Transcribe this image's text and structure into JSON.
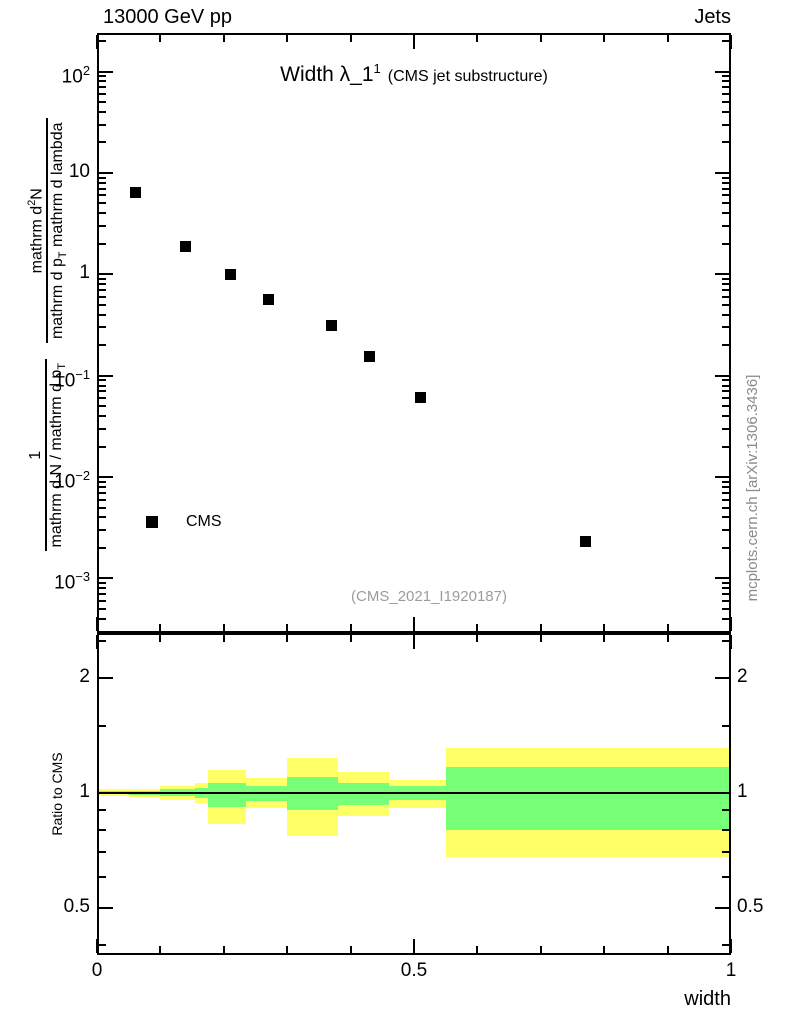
{
  "header": {
    "left": "13000 GeV pp",
    "right": "Jets"
  },
  "plot_title": {
    "main": "Width λ_1",
    "sup": "1",
    "paren": "(CMS jet substructure)"
  },
  "legend": {
    "label": "CMS"
  },
  "watermark": "(CMS_2021_I1920187)",
  "side_note": "mcplots.cern.ch [arXiv:1306.3436]",
  "ylabel": {
    "num1": "1",
    "den1_main": "mathrm d N / mathrm d p",
    "den1_sub": "T",
    "num2_main": "mathrm d",
    "num2_sup": "2",
    "num2_tail": "N",
    "den2_main": "mathrm d p",
    "den2_sub": "T",
    "den2_tail": " mathrm d lambda"
  },
  "ratio_ylabel": "Ratio to CMS",
  "xlabel": "width",
  "chart_data": {
    "type": "scatter",
    "title": "Width λ_1¹ (CMS jet substructure)",
    "xlabel": "width",
    "ylabel": "1/(mathrm d N/mathrm d p_T) mathrm d²N/(mathrm d p_T mathrm d lambda)",
    "xscale": "linear",
    "yscale": "log",
    "xlim": [
      0,
      1
    ],
    "ylim": [
      0.00029,
      240
    ],
    "legend_position": "inside-left-bottom",
    "series": [
      {
        "name": "CMS",
        "marker": "filled-square",
        "color": "#000000",
        "x": [
          0.06,
          0.14,
          0.21,
          0.27,
          0.37,
          0.43,
          0.51,
          0.77
        ],
        "y": [
          6.4,
          1.9,
          1.0,
          0.57,
          0.31,
          0.155,
          0.061,
          0.0023
        ]
      }
    ],
    "axes": {
      "x": {
        "majors": [
          0,
          0.5,
          1
        ],
        "minors": [
          0.1,
          0.2,
          0.3,
          0.4,
          0.6,
          0.7,
          0.8,
          0.9
        ],
        "labels": [
          {
            "v": 0,
            "label": "0"
          },
          {
            "v": 0.5,
            "label": "0.5"
          },
          {
            "v": 1,
            "label": "1"
          }
        ]
      },
      "y_main": {
        "ticks": [
          {
            "v": 100,
            "base": "10",
            "exp": "2"
          },
          {
            "v": 10,
            "base": "10",
            "exp": ""
          },
          {
            "v": 1,
            "base": "1",
            "exp": ""
          },
          {
            "v": 0.1,
            "base": "10",
            "exp": "−1"
          },
          {
            "v": 0.01,
            "base": "10",
            "exp": "−2"
          },
          {
            "v": 0.001,
            "base": "10",
            "exp": "−3"
          }
        ]
      },
      "y_ratio": {
        "ticks": [
          {
            "v": 2,
            "label": "2"
          },
          {
            "v": 1,
            "label": "1"
          },
          {
            "v": 0.5,
            "label": "0.5"
          }
        ],
        "minors": [
          0.4,
          0.6,
          0.7,
          0.8,
          0.9,
          1.5,
          2.5
        ]
      }
    },
    "ratio_panel": {
      "ylabel": "Ratio to CMS",
      "yscale": "log",
      "ylim": [
        0.376,
        2.62
      ],
      "baseline": 1,
      "outer_band_color": "#ffff66",
      "inner_band_color": "#77ff77",
      "bands": [
        {
          "x0": 0.0,
          "x1": 0.05,
          "outer_lo": 0.98,
          "outer_hi": 1.02,
          "inner_lo": 0.99,
          "inner_hi": 1.01
        },
        {
          "x0": 0.05,
          "x1": 0.1,
          "outer_lo": 0.975,
          "outer_hi": 1.025,
          "inner_lo": 0.988,
          "inner_hi": 1.012
        },
        {
          "x0": 0.1,
          "x1": 0.155,
          "outer_lo": 0.96,
          "outer_hi": 1.04,
          "inner_lo": 0.98,
          "inner_hi": 1.02
        },
        {
          "x0": 0.155,
          "x1": 0.175,
          "outer_lo": 0.94,
          "outer_hi": 1.06,
          "inner_lo": 0.97,
          "inner_hi": 1.03
        },
        {
          "x0": 0.175,
          "x1": 0.235,
          "outer_lo": 0.83,
          "outer_hi": 1.15,
          "inner_lo": 0.92,
          "inner_hi": 1.06
        },
        {
          "x0": 0.235,
          "x1": 0.3,
          "outer_lo": 0.91,
          "outer_hi": 1.09,
          "inner_lo": 0.95,
          "inner_hi": 1.04
        },
        {
          "x0": 0.3,
          "x1": 0.38,
          "outer_lo": 0.77,
          "outer_hi": 1.23,
          "inner_lo": 0.9,
          "inner_hi": 1.1
        },
        {
          "x0": 0.38,
          "x1": 0.46,
          "outer_lo": 0.87,
          "outer_hi": 1.13,
          "inner_lo": 0.93,
          "inner_hi": 1.06
        },
        {
          "x0": 0.46,
          "x1": 0.55,
          "outer_lo": 0.91,
          "outer_hi": 1.08,
          "inner_lo": 0.96,
          "inner_hi": 1.04
        },
        {
          "x0": 0.55,
          "x1": 1.0,
          "outer_lo": 0.68,
          "outer_hi": 1.31,
          "inner_lo": 0.8,
          "inner_hi": 1.17
        }
      ]
    }
  }
}
